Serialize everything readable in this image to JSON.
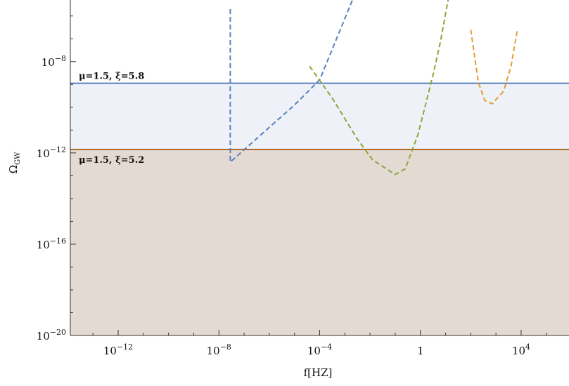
{
  "chart_data": {
    "type": "line",
    "xlabel": "f[HZ]",
    "ylabel": "Ω",
    "ylabel_sub": "GW",
    "xscale": "log",
    "yscale": "log",
    "xlim_log10": [
      -13.9,
      5.9
    ],
    "ylim_log10": [
      -20.0,
      -5.3
    ],
    "x_ticks": [
      {
        "exp": -12,
        "base": "10",
        "sup": "−12"
      },
      {
        "exp": -8,
        "base": "10",
        "sup": "−8"
      },
      {
        "exp": -4,
        "base": "10",
        "sup": "−4"
      },
      {
        "exp": 0,
        "base": "1",
        "sup": ""
      },
      {
        "exp": 4,
        "base": "10",
        "sup": "4"
      }
    ],
    "y_ticks": [
      {
        "exp": -8,
        "base": "10",
        "sup": "−8"
      },
      {
        "exp": -12,
        "base": "10",
        "sup": "−12"
      },
      {
        "exp": -16,
        "base": "10",
        "sup": "−16"
      },
      {
        "exp": -20,
        "base": "10",
        "sup": "−20"
      }
    ],
    "bands": [
      {
        "label": "μ=1.5,  ξ=5.8",
        "log10_omega": -8.95,
        "line_color": "#5b7fbd",
        "fill_color": "#eef2f8",
        "label_pos": "above"
      },
      {
        "label": "μ=1.5,  ξ=5.2",
        "log10_omega": -11.85,
        "line_color": "#b0692b",
        "fill_color": "#e3dad4",
        "label_pos": "below"
      }
    ],
    "series": [
      {
        "color": "#5b7fbd",
        "style": "dashed",
        "points_log10": [
          [
            -7.55,
            -5.7
          ],
          [
            -7.55,
            -12.4
          ],
          [
            -5.0,
            -9.9
          ],
          [
            -4.0,
            -8.8
          ],
          [
            -2.7,
            -5.3
          ]
        ]
      },
      {
        "color": "#8aa63a",
        "style": "dashed",
        "points_log10": [
          [
            -4.4,
            -8.2
          ],
          [
            -3.5,
            -9.6
          ],
          [
            -3.0,
            -10.5
          ],
          [
            -2.5,
            -11.4
          ],
          [
            -1.9,
            -12.3
          ],
          [
            -1.0,
            -12.95
          ],
          [
            -0.6,
            -12.7
          ],
          [
            -0.1,
            -11.2
          ],
          [
            0.5,
            -8.6
          ],
          [
            0.8,
            -7.1
          ],
          [
            1.1,
            -5.3
          ]
        ]
      },
      {
        "color": "#e0a033",
        "style": "dashed",
        "points_log10": [
          [
            2.0,
            -6.6
          ],
          [
            2.3,
            -8.9
          ],
          [
            2.55,
            -9.7
          ],
          [
            2.85,
            -9.85
          ],
          [
            3.3,
            -9.3
          ],
          [
            3.6,
            -8.2
          ],
          [
            3.85,
            -6.6
          ]
        ]
      }
    ]
  }
}
